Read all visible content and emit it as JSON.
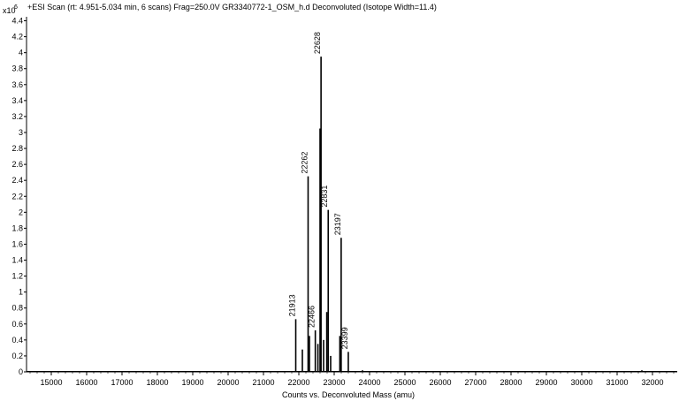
{
  "chart_data": {
    "type": "line",
    "title": "+ESI Scan (rt: 4.951-5.034 min, 6 scans) Frag=250.0V GR3340772-1_OSM_h.d  Deconvoluted (Isotope Width=11.4)",
    "xlabel": "Counts vs. Deconvoluted Mass (amu)",
    "ylabel": "",
    "y_multiplier_base": "x10",
    "y_multiplier_exp": "6",
    "xlim": [
      14300,
      32700
    ],
    "ylim": [
      0,
      4.45
    ],
    "x_ticks": [
      15000,
      16000,
      17000,
      18000,
      19000,
      20000,
      21000,
      22000,
      23000,
      24000,
      25000,
      26000,
      27000,
      28000,
      29000,
      30000,
      31000,
      32000
    ],
    "y_ticks": [
      0,
      0.2,
      0.4,
      0.6,
      0.8,
      1,
      1.2,
      1.4,
      1.6,
      1.8,
      2,
      2.2,
      2.4,
      2.6,
      2.8,
      3,
      3.2,
      3.4,
      3.6,
      3.8,
      4,
      4.2,
      4.4
    ],
    "grid": false,
    "series": [
      {
        "values": [
          {
            "x": 21913,
            "y": 0.66
          },
          {
            "x": 22100,
            "y": 0.28
          },
          {
            "x": 22262,
            "y": 2.45
          },
          {
            "x": 22300,
            "y": 0.45
          },
          {
            "x": 22466,
            "y": 0.52
          },
          {
            "x": 22540,
            "y": 0.35
          },
          {
            "x": 22600,
            "y": 3.05
          },
          {
            "x": 22628,
            "y": 3.95
          },
          {
            "x": 22700,
            "y": 0.4
          },
          {
            "x": 22790,
            "y": 0.75
          },
          {
            "x": 22831,
            "y": 2.03
          },
          {
            "x": 22900,
            "y": 0.2
          },
          {
            "x": 23160,
            "y": 0.45
          },
          {
            "x": 23197,
            "y": 1.68
          },
          {
            "x": 23399,
            "y": 0.25
          },
          {
            "x": 23800,
            "y": 0.02
          },
          {
            "x": 26500,
            "y": 0.01
          },
          {
            "x": 29000,
            "y": 0.01
          },
          {
            "x": 30900,
            "y": 0.01
          },
          {
            "x": 31700,
            "y": 0.02
          }
        ]
      }
    ],
    "peak_labels": [
      {
        "x": 21913,
        "y": 0.66,
        "text": "21913"
      },
      {
        "x": 22262,
        "y": 2.45,
        "text": "22262"
      },
      {
        "x": 22466,
        "y": 0.52,
        "text": "22466"
      },
      {
        "x": 22628,
        "y": 3.95,
        "text": "22628"
      },
      {
        "x": 22831,
        "y": 2.03,
        "text": "22831"
      },
      {
        "x": 23197,
        "y": 1.68,
        "text": "23197"
      },
      {
        "x": 23399,
        "y": 0.25,
        "text": "23399"
      }
    ],
    "colors": {
      "trace": "#000000",
      "axis": "#000000",
      "background": "#ffffff"
    }
  }
}
